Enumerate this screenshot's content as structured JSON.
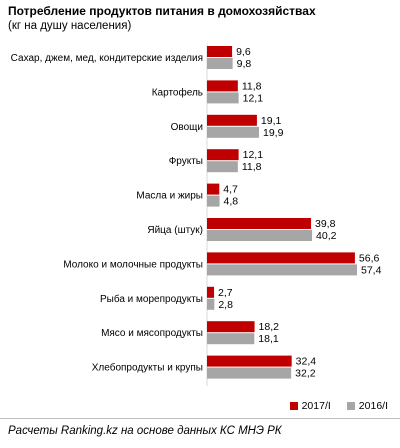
{
  "chart_data": {
    "type": "bar",
    "orientation": "horizontal",
    "title": "Потребление продуктов питания  в домохозяйствах",
    "subtitle": "(кг на душу  населения)",
    "categories": [
      "Сахар, джем, мед, кондитерские изделия",
      "Картофель",
      "Овощи",
      "Фрукты",
      "Масла и жиры",
      "Яйца (штук)",
      "Молоко и молочные продукты",
      "Рыба и морепродукты",
      "Мясо и мясопродукты",
      "Хлебопродукты и крупы"
    ],
    "series": [
      {
        "name": "2017/I",
        "color": "#c00000",
        "values": [
          9.6,
          11.8,
          19.1,
          12.1,
          4.7,
          39.8,
          56.6,
          2.7,
          18.2,
          32.4
        ],
        "labels": [
          "9,6",
          "11,8",
          "19,1",
          "12,1",
          "4,7",
          "39,8",
          "56,6",
          "2,7",
          "18,2",
          "32,4"
        ]
      },
      {
        "name": "2016/I",
        "color": "#a6a6a6",
        "values": [
          9.8,
          12.1,
          19.9,
          11.8,
          4.8,
          40.2,
          57.4,
          2.8,
          18.1,
          32.2
        ],
        "labels": [
          "9,8",
          "12,1",
          "19,9",
          "11,8",
          "4,8",
          "40,2",
          "57,4",
          "2,8",
          "18,1",
          "32,2"
        ]
      }
    ],
    "xlim": [
      0,
      57.4
    ],
    "legend_position": "bottom-right",
    "grid": false
  },
  "footer": {
    "source": "Расчеты Ranking.kz на основе данных КС МНЭ РК"
  }
}
